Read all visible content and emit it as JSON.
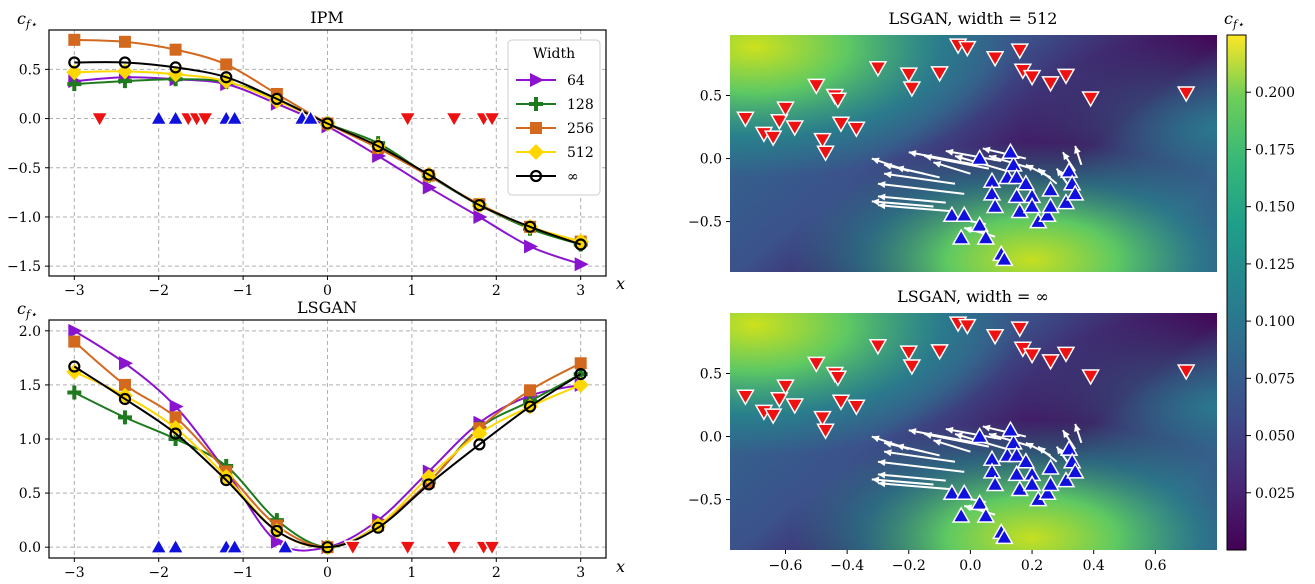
{
  "colors": {
    "64": "#8a13cf",
    "128": "#1e7a1e",
    "256": "#d2691e",
    "512": "#ffd700",
    "inf": "#000000",
    "red_marker": "#ee1111",
    "blue_marker": "#1111dd"
  },
  "chart_data": [
    {
      "type": "line",
      "title": "IPM",
      "ylabel": "c_f*",
      "xlabel": "x",
      "xlim": [
        -3.3,
        3.3
      ],
      "ylim": [
        -1.6,
        0.9
      ],
      "xticks": [
        -3,
        -2,
        -1,
        0,
        1,
        2,
        3
      ],
      "xtick_labels": [
        "−3",
        "−2",
        "−1",
        "0",
        "1",
        "2",
        "3"
      ],
      "yticks": [
        -1.5,
        -1.0,
        -0.5,
        0.0,
        0.5
      ],
      "ytick_labels": [
        "−1.5",
        "−1.0",
        "−0.5",
        "0.0",
        "0.5"
      ],
      "grid": true,
      "legend": {
        "title": "Width",
        "position": "top-right",
        "entries": [
          "64",
          "128",
          "256",
          "512",
          "∞"
        ]
      },
      "series": [
        {
          "name": "64",
          "marker": "tri-right",
          "color_key": "64",
          "x": [
            -3.0,
            -2.4,
            -1.8,
            -1.2,
            -0.6,
            0.0,
            0.6,
            1.2,
            1.8,
            2.4,
            3.0
          ],
          "y": [
            0.38,
            0.42,
            0.4,
            0.35,
            0.15,
            -0.08,
            -0.38,
            -0.7,
            -1.0,
            -1.3,
            -1.48
          ]
        },
        {
          "name": "128",
          "marker": "plus",
          "color_key": "128",
          "x": [
            -3.0,
            -2.4,
            -1.8,
            -1.2,
            -0.6,
            0.0,
            0.6,
            1.2,
            1.8,
            2.4,
            3.0
          ],
          "y": [
            0.35,
            0.38,
            0.4,
            0.37,
            0.2,
            -0.05,
            -0.25,
            -0.58,
            -0.88,
            -1.12,
            -1.28
          ]
        },
        {
          "name": "256",
          "marker": "square",
          "color_key": "256",
          "x": [
            -3.0,
            -2.4,
            -1.8,
            -1.2,
            -0.6,
            0.0,
            0.6,
            1.2,
            1.8,
            2.4,
            3.0
          ],
          "y": [
            0.8,
            0.78,
            0.7,
            0.55,
            0.25,
            -0.05,
            -0.3,
            -0.58,
            -0.87,
            -1.1,
            -1.25
          ]
        },
        {
          "name": "512",
          "marker": "diamond",
          "color_key": "512",
          "x": [
            -3.0,
            -2.4,
            -1.8,
            -1.2,
            -0.6,
            0.0,
            0.6,
            1.2,
            1.8,
            2.4,
            3.0
          ],
          "y": [
            0.47,
            0.48,
            0.45,
            0.38,
            0.18,
            -0.05,
            -0.28,
            -0.57,
            -0.88,
            -1.1,
            -1.25
          ]
        },
        {
          "name": "∞",
          "marker": "circle-open",
          "color_key": "inf",
          "x": [
            -3.0,
            -2.4,
            -1.8,
            -1.2,
            -0.6,
            0.0,
            0.6,
            1.2,
            1.8,
            2.4,
            3.0
          ],
          "y": [
            0.57,
            0.57,
            0.52,
            0.42,
            0.2,
            -0.05,
            -0.28,
            -0.57,
            -0.88,
            -1.1,
            -1.28
          ]
        }
      ],
      "red_points_x": [
        -2.7,
        -1.65,
        -1.55,
        -1.45,
        0.95,
        1.5,
        1.85,
        1.95
      ],
      "blue_points_x": [
        -2.0,
        -1.8,
        -1.2,
        -1.1,
        -0.3,
        -0.2
      ]
    },
    {
      "type": "line",
      "title": "LSGAN",
      "ylabel": "c_f*",
      "xlabel": "x",
      "xlim": [
        -3.3,
        3.3
      ],
      "ylim": [
        -0.1,
        2.1
      ],
      "xticks": [
        -3,
        -2,
        -1,
        0,
        1,
        2,
        3
      ],
      "xtick_labels": [
        "−3",
        "−2",
        "−1",
        "0",
        "1",
        "2",
        "3"
      ],
      "yticks": [
        0.0,
        0.5,
        1.0,
        1.5,
        2.0
      ],
      "ytick_labels": [
        "0.0",
        "0.5",
        "1.0",
        "1.5",
        "2.0"
      ],
      "grid": true,
      "series": [
        {
          "name": "64",
          "marker": "tri-right",
          "color_key": "64",
          "x": [
            -3.0,
            -2.4,
            -1.8,
            -1.2,
            -0.6,
            0.0,
            0.6,
            1.2,
            1.8,
            2.4,
            3.0
          ],
          "y": [
            2.0,
            1.7,
            1.3,
            0.7,
            0.05,
            0.0,
            0.25,
            0.7,
            1.15,
            1.4,
            1.5
          ]
        },
        {
          "name": "128",
          "marker": "plus",
          "color_key": "128",
          "x": [
            -3.0,
            -2.4,
            -1.8,
            -1.2,
            -0.6,
            0.0,
            0.6,
            1.2,
            1.8,
            2.4,
            3.0
          ],
          "y": [
            1.43,
            1.2,
            1.0,
            0.75,
            0.25,
            0.0,
            0.2,
            0.6,
            1.1,
            1.35,
            1.6
          ]
        },
        {
          "name": "256",
          "marker": "square",
          "color_key": "256",
          "x": [
            -3.0,
            -2.4,
            -1.8,
            -1.2,
            -0.6,
            0.0,
            0.6,
            1.2,
            1.8,
            2.4,
            3.0
          ],
          "y": [
            1.9,
            1.5,
            1.2,
            0.7,
            0.2,
            0.0,
            0.2,
            0.6,
            1.1,
            1.45,
            1.7
          ]
        },
        {
          "name": "512",
          "marker": "diamond",
          "color_key": "512",
          "x": [
            -3.0,
            -2.4,
            -1.8,
            -1.2,
            -0.6,
            0.0,
            0.6,
            1.2,
            1.8,
            2.4,
            3.0
          ],
          "y": [
            1.62,
            1.4,
            1.1,
            0.65,
            0.15,
            0.0,
            0.2,
            0.65,
            1.05,
            1.3,
            1.5
          ]
        },
        {
          "name": "∞",
          "marker": "circle-open",
          "color_key": "inf",
          "x": [
            -3.0,
            -2.4,
            -1.8,
            -1.2,
            -0.6,
            0.0,
            0.6,
            1.2,
            1.8,
            2.4,
            3.0
          ],
          "y": [
            1.67,
            1.37,
            1.05,
            0.62,
            0.15,
            0.0,
            0.18,
            0.58,
            0.95,
            1.3,
            1.6
          ]
        }
      ],
      "red_points_x": [
        0.3,
        0.95,
        1.5,
        1.85,
        1.95
      ],
      "blue_points_x": [
        -2.0,
        -1.8,
        -1.2,
        -1.1,
        -0.5
      ]
    },
    {
      "type": "heatmap",
      "title": "LSGAN, width = 512",
      "xlim": [
        -0.78,
        0.8
      ],
      "ylim": [
        -0.9,
        0.98
      ],
      "xticks": [
        -0.6,
        -0.4,
        -0.2,
        0.0,
        0.2,
        0.4,
        0.6
      ],
      "yticks": [
        -0.5,
        0.0,
        0.5
      ],
      "ytick_labels": [
        "−0.5",
        "0.0",
        "0.5"
      ],
      "red_points": [
        [
          -0.73,
          0.32
        ],
        [
          -0.67,
          0.2
        ],
        [
          -0.64,
          0.17
        ],
        [
          -0.62,
          0.3
        ],
        [
          -0.6,
          0.4
        ],
        [
          -0.57,
          0.25
        ],
        [
          -0.5,
          0.58
        ],
        [
          -0.48,
          0.15
        ],
        [
          -0.47,
          0.05
        ],
        [
          -0.44,
          0.5
        ],
        [
          -0.43,
          0.47
        ],
        [
          -0.42,
          0.28
        ],
        [
          -0.37,
          0.24
        ],
        [
          -0.3,
          0.72
        ],
        [
          -0.2,
          0.67
        ],
        [
          -0.19,
          0.56
        ],
        [
          -0.1,
          0.68
        ],
        [
          -0.04,
          0.9
        ],
        [
          -0.01,
          0.88
        ],
        [
          0.08,
          0.8
        ],
        [
          0.16,
          0.86
        ],
        [
          0.17,
          0.7
        ],
        [
          0.2,
          0.65
        ],
        [
          0.26,
          0.6
        ],
        [
          0.31,
          0.66
        ],
        [
          0.39,
          0.48
        ],
        [
          0.7,
          0.52
        ]
      ],
      "blue_points": [
        [
          -0.06,
          -0.45
        ],
        [
          -0.03,
          -0.63
        ],
        [
          -0.02,
          -0.45
        ],
        [
          0.03,
          -0.53
        ],
        [
          0.05,
          -0.63
        ],
        [
          0.07,
          -0.18
        ],
        [
          0.07,
          -0.28
        ],
        [
          0.08,
          -0.38
        ],
        [
          0.1,
          -0.76
        ],
        [
          0.11,
          -0.8
        ],
        [
          0.12,
          -0.15
        ],
        [
          0.14,
          -0.05
        ],
        [
          0.15,
          -0.3
        ],
        [
          0.16,
          -0.42
        ],
        [
          0.2,
          -0.3
        ],
        [
          0.2,
          -0.38
        ],
        [
          0.22,
          -0.5
        ],
        [
          0.25,
          -0.45
        ],
        [
          0.26,
          -0.38
        ],
        [
          0.26,
          -0.25
        ],
        [
          0.31,
          -0.35
        ],
        [
          0.32,
          -0.1
        ],
        [
          0.33,
          -0.2
        ],
        [
          0.34,
          -0.28
        ],
        [
          0.03,
          0.0
        ],
        [
          0.13,
          0.05
        ],
        [
          0.15,
          -0.15
        ],
        [
          0.18,
          -0.2
        ]
      ],
      "arrows": [
        [
          -0.2,
          -0.1,
          -0.32,
          0.0
        ],
        [
          -0.15,
          -0.12,
          -0.28,
          -0.05
        ],
        [
          -0.1,
          -0.15,
          -0.24,
          -0.07
        ],
        [
          -0.05,
          -0.2,
          -0.28,
          -0.12
        ],
        [
          -0.02,
          -0.28,
          -0.3,
          -0.2
        ],
        [
          -0.08,
          -0.35,
          -0.3,
          -0.3
        ],
        [
          -0.05,
          -0.42,
          -0.3,
          -0.37
        ],
        [
          -0.12,
          -0.38,
          -0.32,
          -0.34
        ],
        [
          0.02,
          -0.05,
          -0.2,
          0.05
        ],
        [
          0.06,
          -0.08,
          -0.15,
          0.02
        ],
        [
          0.1,
          -0.02,
          -0.08,
          0.06
        ],
        [
          0.12,
          -0.1,
          -0.05,
          0.02
        ],
        [
          0.18,
          0.0,
          0.04,
          0.08
        ],
        [
          0.2,
          -0.08,
          0.06,
          0.02
        ],
        [
          0.05,
          -0.52,
          -0.08,
          -0.46
        ],
        [
          0.08,
          -0.62,
          -0.02,
          -0.55
        ],
        [
          0.26,
          -0.15,
          0.18,
          -0.05
        ],
        [
          0.28,
          -0.2,
          0.22,
          -0.08
        ],
        [
          0.32,
          -0.22,
          0.28,
          -0.08
        ],
        [
          0.34,
          -0.1,
          0.3,
          0.05
        ],
        [
          0.36,
          -0.05,
          0.34,
          0.1
        ],
        [
          0.0,
          -0.12,
          -0.12,
          -0.03
        ]
      ]
    },
    {
      "type": "heatmap",
      "title": "LSGAN, width = ∞",
      "xlim": [
        -0.78,
        0.8
      ],
      "ylim": [
        -0.9,
        0.98
      ],
      "xticks": [
        -0.6,
        -0.4,
        -0.2,
        0.0,
        0.2,
        0.4,
        0.6
      ],
      "xtick_labels": [
        "−0.6",
        "−0.4",
        "−0.2",
        "0.0",
        "0.2",
        "0.4",
        "0.6"
      ],
      "yticks": [
        -0.5,
        0.0,
        0.5
      ],
      "ytick_labels": [
        "−0.5",
        "0.0",
        "0.5"
      ]
    }
  ],
  "colorbar": {
    "label": "c_f*",
    "vmin": 0.0,
    "vmax": 0.225,
    "ticks": [
      "0.025",
      "0.050",
      "0.075",
      "0.100",
      "0.125",
      "0.150",
      "0.175",
      "0.200"
    ],
    "tick_values": [
      0.025,
      0.05,
      0.075,
      0.1,
      0.125,
      0.15,
      0.175,
      0.2
    ],
    "colormap": "viridis"
  }
}
